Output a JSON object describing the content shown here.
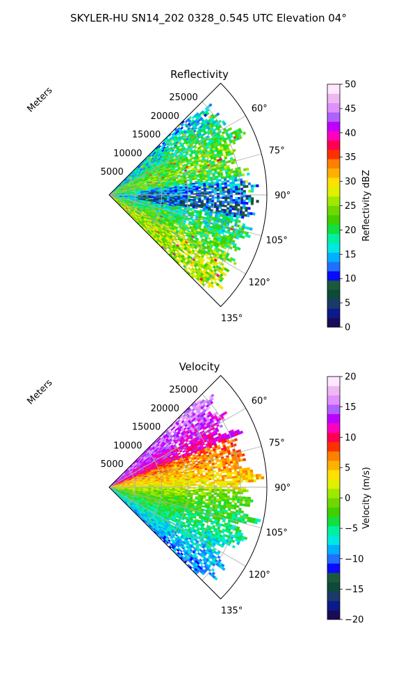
{
  "figure": {
    "suptitle": "SKYLER-HU  SN14_202  0328_0.545 UTC Elevation 04°"
  },
  "chart_data": [
    {
      "type": "heatmap",
      "title": "Reflectivity",
      "coordinate_system": "polar-sector",
      "theta_range_deg": [
        45,
        135
      ],
      "theta_ticks": [
        "60°",
        "75°",
        "90°",
        "105°",
        "120°",
        "135°"
      ],
      "theta_tick_values": [
        60,
        75,
        90,
        105,
        120,
        135
      ],
      "r_label": "Meters",
      "r_range": [
        0,
        30000
      ],
      "r_ticks": [
        5000,
        10000,
        15000,
        20000,
        25000
      ],
      "r_tick_labels": [
        "5000",
        "10000",
        "15000",
        "20000",
        "25000"
      ],
      "grid": true,
      "colorbar": {
        "label": "Reflectivity dBZ",
        "range": [
          0,
          50
        ],
        "ticks": [
          0,
          5,
          10,
          15,
          20,
          25,
          30,
          35,
          40,
          45,
          50
        ],
        "tick_labels": [
          "0",
          "5",
          "10",
          "15",
          "20",
          "25",
          "30",
          "35",
          "40",
          "45",
          "50"
        ],
        "colormap": [
          "#1a0a5a",
          "#0a1a8a",
          "#1a3a6a",
          "#0e4a3a",
          "#1a5a3a",
          "#0a0aff",
          "#2070ff",
          "#00b0ff",
          "#00e8e0",
          "#00f0a0",
          "#10e040",
          "#40d000",
          "#70d800",
          "#a0e800",
          "#e0f000",
          "#ffe000",
          "#ffb000",
          "#ff8000",
          "#ff3000",
          "#ff0050",
          "#ff00c0",
          "#c000ff",
          "#b060ff",
          "#e090ff",
          "#f0b8f0",
          "#ffe8ff"
        ]
      },
      "echo_extent_r": [
        0,
        30000
      ]
    },
    {
      "type": "heatmap",
      "title": "Velocity",
      "coordinate_system": "polar-sector",
      "theta_range_deg": [
        45,
        135
      ],
      "theta_ticks": [
        "60°",
        "75°",
        "90°",
        "105°",
        "120°",
        "135°"
      ],
      "theta_tick_values": [
        60,
        75,
        90,
        105,
        120,
        135
      ],
      "r_label": "Meters",
      "r_range": [
        0,
        30000
      ],
      "r_ticks": [
        5000,
        10000,
        15000,
        20000,
        25000
      ],
      "r_tick_labels": [
        "5000",
        "10000",
        "15000",
        "20000",
        "25000"
      ],
      "grid": true,
      "colorbar": {
        "label": "Velocity (m/s)",
        "range": [
          -20,
          20
        ],
        "ticks": [
          -20,
          -15,
          -10,
          -5,
          0,
          5,
          10,
          15,
          20
        ],
        "tick_labels": [
          "−20",
          "−15",
          "−10",
          "−5",
          "0",
          "5",
          "10",
          "15",
          "20"
        ],
        "colormap": [
          "#1a0a5a",
          "#0a1a8a",
          "#1a3a6a",
          "#0e4a3a",
          "#1a5a3a",
          "#0a0aff",
          "#2070ff",
          "#00b0ff",
          "#00e8e0",
          "#00f0a0",
          "#10e040",
          "#40d000",
          "#70d800",
          "#a0e800",
          "#e0f000",
          "#ffe000",
          "#ffb000",
          "#ff8000",
          "#ff3000",
          "#ff0050",
          "#ff00c0",
          "#c000ff",
          "#b060ff",
          "#e090ff",
          "#f0b8f0",
          "#ffe8ff"
        ]
      },
      "echo_extent_r": [
        0,
        30000
      ]
    }
  ]
}
